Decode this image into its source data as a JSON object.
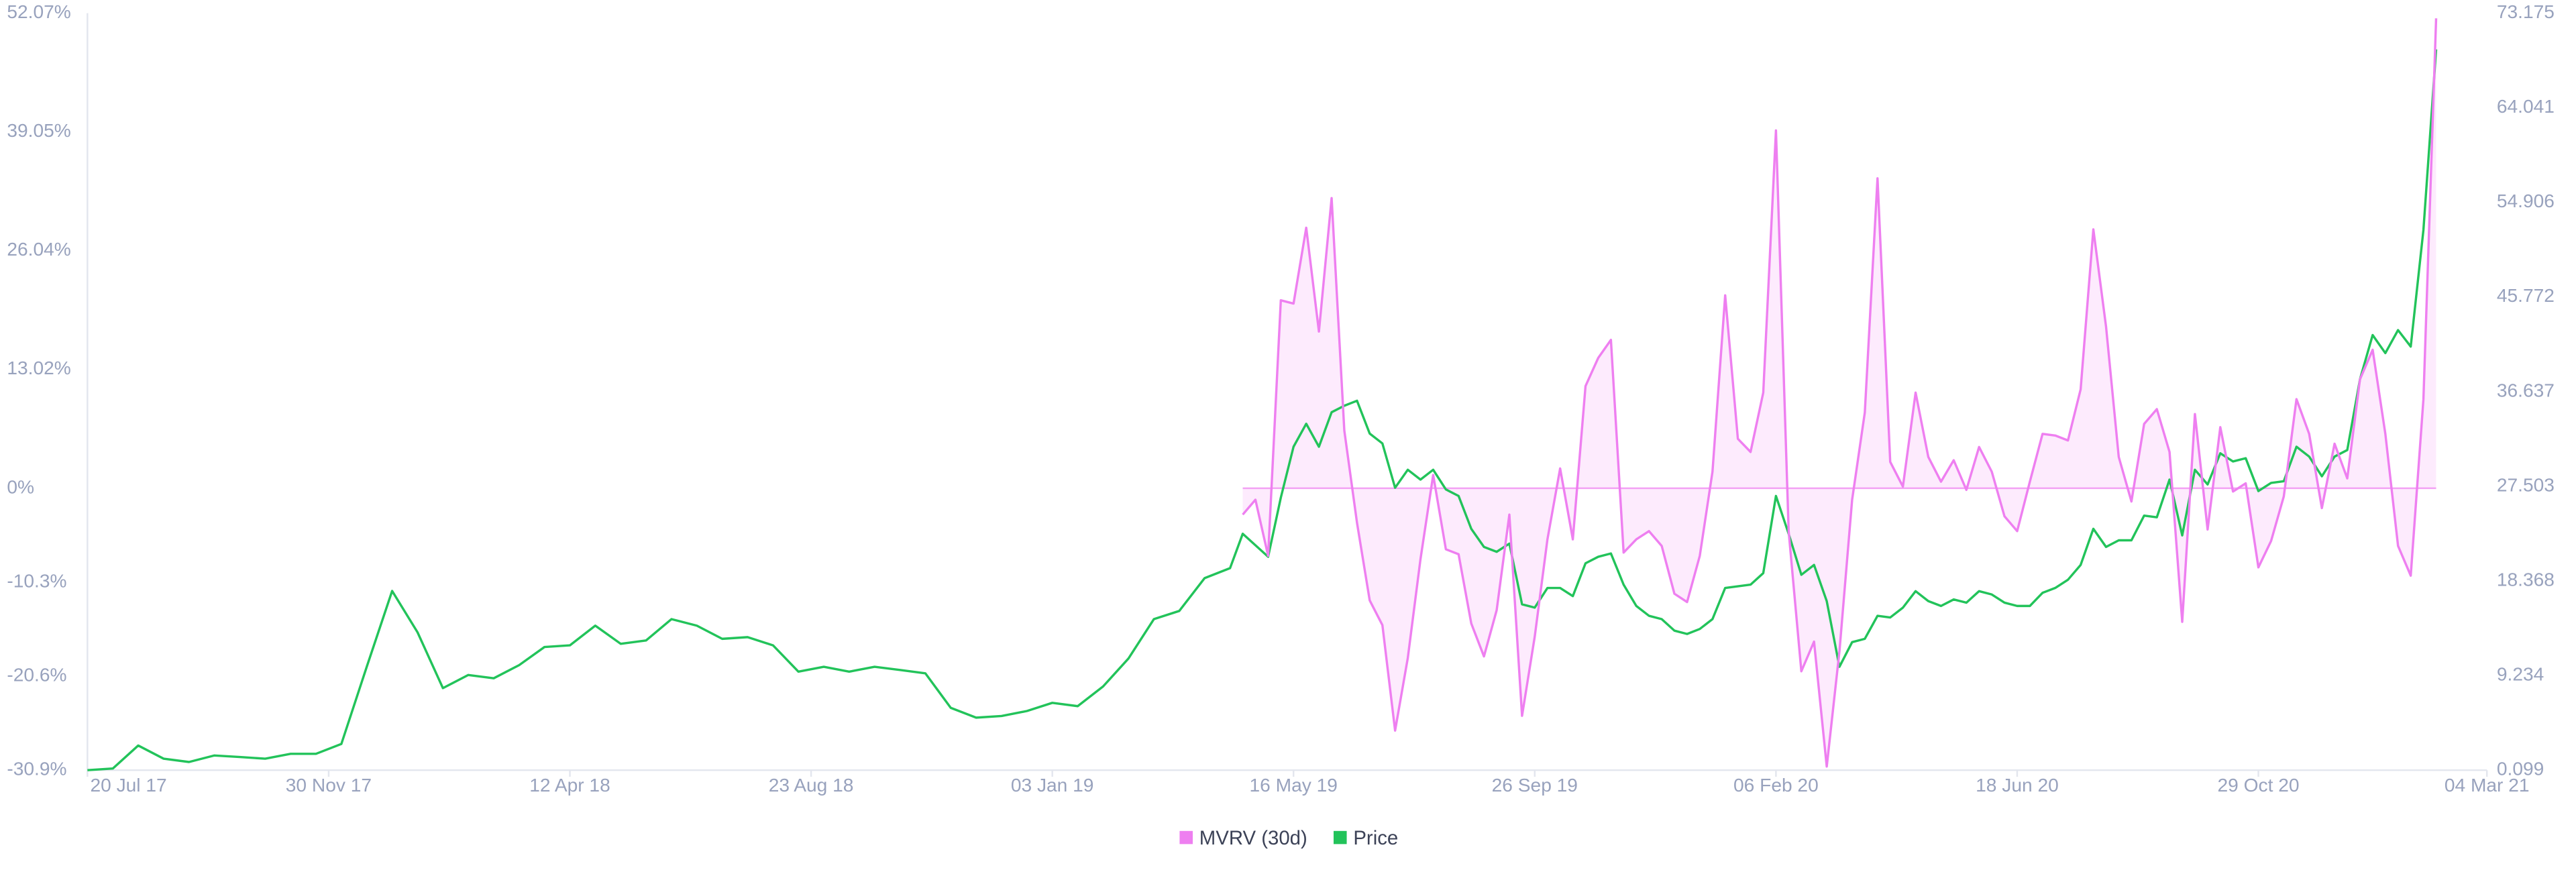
{
  "chart_data": {
    "type": "line",
    "x": [
      "2017-07-20",
      "2017-08-03",
      "2017-08-17",
      "2017-08-31",
      "2017-09-14",
      "2017-09-28",
      "2017-10-12",
      "2017-10-26",
      "2017-11-09",
      "2017-11-23",
      "2017-12-07",
      "2017-12-21",
      "2018-01-04",
      "2018-01-18",
      "2018-02-01",
      "2018-02-15",
      "2018-03-01",
      "2018-03-15",
      "2018-03-29",
      "2018-04-12",
      "2018-04-26",
      "2018-05-10",
      "2018-05-24",
      "2018-06-07",
      "2018-06-21",
      "2018-07-05",
      "2018-07-19",
      "2018-08-02",
      "2018-08-16",
      "2018-08-30",
      "2018-09-13",
      "2018-09-27",
      "2018-10-11",
      "2018-10-25",
      "2018-11-08",
      "2018-11-22",
      "2018-12-06",
      "2018-12-20",
      "2019-01-03",
      "2019-01-17",
      "2019-01-31",
      "2019-02-14",
      "2019-02-28",
      "2019-03-14",
      "2019-03-28",
      "2019-04-11",
      "2019-04-18",
      "2019-04-25",
      "2019-05-02",
      "2019-05-09",
      "2019-05-16",
      "2019-05-23",
      "2019-05-30",
      "2019-06-06",
      "2019-06-13",
      "2019-06-20",
      "2019-06-27",
      "2019-07-04",
      "2019-07-11",
      "2019-07-18",
      "2019-07-25",
      "2019-08-01",
      "2019-08-08",
      "2019-08-15",
      "2019-08-22",
      "2019-08-29",
      "2019-09-05",
      "2019-09-12",
      "2019-09-19",
      "2019-09-26",
      "2019-10-03",
      "2019-10-10",
      "2019-10-17",
      "2019-10-24",
      "2019-10-31",
      "2019-11-07",
      "2019-11-14",
      "2019-11-21",
      "2019-11-28",
      "2019-12-05",
      "2019-12-12",
      "2019-12-19",
      "2019-12-26",
      "2020-01-02",
      "2020-01-09",
      "2020-01-16",
      "2020-01-23",
      "2020-01-30",
      "2020-02-06",
      "2020-02-13",
      "2020-02-20",
      "2020-02-27",
      "2020-03-05",
      "2020-03-12",
      "2020-03-19",
      "2020-03-26",
      "2020-04-02",
      "2020-04-09",
      "2020-04-16",
      "2020-04-23",
      "2020-04-30",
      "2020-05-07",
      "2020-05-14",
      "2020-05-21",
      "2020-05-28",
      "2020-06-04",
      "2020-06-11",
      "2020-06-18",
      "2020-06-25",
      "2020-07-02",
      "2020-07-09",
      "2020-07-16",
      "2020-07-23",
      "2020-07-30",
      "2020-08-06",
      "2020-08-13",
      "2020-08-20",
      "2020-08-27",
      "2020-09-03",
      "2020-09-10",
      "2020-09-17",
      "2020-09-24",
      "2020-10-01",
      "2020-10-08",
      "2020-10-15",
      "2020-10-22",
      "2020-10-29",
      "2020-11-05",
      "2020-11-12",
      "2020-11-19",
      "2020-11-26",
      "2020-12-03",
      "2020-12-10",
      "2020-12-17",
      "2020-12-24",
      "2020-12-31",
      "2021-01-07",
      "2021-01-14",
      "2021-01-21",
      "2021-01-28",
      "2021-02-04"
    ],
    "series": [
      {
        "name": "MVRV (30d)",
        "color": "#ee7ff0",
        "fill": "#fde6fd",
        "axis": "y",
        "values": [
          null,
          null,
          null,
          null,
          null,
          null,
          null,
          null,
          null,
          null,
          null,
          null,
          null,
          null,
          null,
          null,
          null,
          null,
          null,
          null,
          null,
          null,
          null,
          null,
          null,
          null,
          null,
          null,
          null,
          null,
          null,
          null,
          null,
          null,
          null,
          null,
          null,
          null,
          null,
          null,
          null,
          null,
          null,
          null,
          null,
          null,
          -2.89,
          -1.26,
          -7.41,
          20.6,
          20.24,
          28.55,
          17.17,
          31.8,
          6.32,
          -3.79,
          -12.29,
          -15.0,
          -26.56,
          -18.61,
          -7.77,
          1.45,
          -6.69,
          -7.23,
          -14.82,
          -18.43,
          -13.37,
          -2.89,
          -24.94,
          -16.26,
          -5.6,
          2.17,
          -5.6,
          11.2,
          14.28,
          16.26,
          -7.05,
          -5.6,
          -4.7,
          -6.32,
          -11.56,
          -12.47,
          -7.41,
          1.81,
          21.14,
          5.42,
          3.98,
          10.48,
          39.21,
          -4.7,
          -20.06,
          -16.81,
          -30.5,
          -17.89,
          -1.26,
          8.31,
          33.97,
          2.89,
          0.18,
          10.48,
          3.43,
          0.72,
          3.07,
          -0.18,
          4.52,
          1.81,
          -3.07,
          -4.7,
          0.72,
          5.96,
          5.78,
          5.24,
          10.84,
          28.37,
          17.71,
          3.43,
          -1.45,
          7.05,
          8.67,
          3.98,
          -14.64,
          8.13,
          -4.52,
          6.69,
          -0.36,
          0.54,
          -8.67,
          -5.78,
          -0.9,
          9.76,
          5.96,
          -2.17,
          4.88,
          1.08,
          11.93,
          15.18,
          5.96,
          -6.32,
          -9.58,
          9.76,
          51.5
        ]
      },
      {
        "name": "Price",
        "color": "#22c35a",
        "axis": "y2",
        "values": [
          0.1,
          0.26,
          2.48,
          1.21,
          0.89,
          1.52,
          1.37,
          1.21,
          1.68,
          1.68,
          2.63,
          10.08,
          17.4,
          13.41,
          8.02,
          9.29,
          8.97,
          10.24,
          11.99,
          12.15,
          14.05,
          12.3,
          12.62,
          14.68,
          14.05,
          12.78,
          12.94,
          12.15,
          9.61,
          10.08,
          9.61,
          10.08,
          9.77,
          9.45,
          6.12,
          5.17,
          5.33,
          5.81,
          6.6,
          6.28,
          8.18,
          10.88,
          14.68,
          15.47,
          18.64,
          19.6,
          22.92,
          21.81,
          20.7,
          26.41,
          31.32,
          33.54,
          31.32,
          34.65,
          35.28,
          35.76,
          32.59,
          31.64,
          27.36,
          29.1,
          28.15,
          29.1,
          27.2,
          26.57,
          23.4,
          21.65,
          21.18,
          21.97,
          16.11,
          15.79,
          17.69,
          17.69,
          16.9,
          20.07,
          20.7,
          21.02,
          18.01,
          15.95,
          15.0,
          14.68,
          13.57,
          13.25,
          13.73,
          14.68,
          17.69,
          17.85,
          18.01,
          19.12,
          26.57,
          22.92,
          18.96,
          19.91,
          16.42,
          10.08,
          12.46,
          12.78,
          15.0,
          14.84,
          15.79,
          17.38,
          16.42,
          15.95,
          16.58,
          16.27,
          17.38,
          17.06,
          16.27,
          15.95,
          15.95,
          17.22,
          17.69,
          18.48,
          19.91,
          23.4,
          21.65,
          22.29,
          22.29,
          24.67,
          24.51,
          28.15,
          22.76,
          29.1,
          27.68,
          30.69,
          29.9,
          30.21,
          27.04,
          27.83,
          27.99,
          31.32,
          30.37,
          28.47,
          30.37,
          31.0,
          37.82,
          42.1,
          40.36,
          42.58,
          40.99,
          52.25,
          69.68
        ]
      }
    ],
    "xlim": [
      "2017-07-20",
      "2021-03-04"
    ],
    "xticks": [
      {
        "value": "2017-07-20",
        "label": "20 Jul 17"
      },
      {
        "value": "2017-11-30",
        "label": "30 Nov 17"
      },
      {
        "value": "2018-04-12",
        "label": "12 Apr 18"
      },
      {
        "value": "2018-08-23",
        "label": "23 Aug 18"
      },
      {
        "value": "2019-01-03",
        "label": "03 Jan 19"
      },
      {
        "value": "2019-05-16",
        "label": "16 May 19"
      },
      {
        "value": "2019-09-26",
        "label": "26 Sep 19"
      },
      {
        "value": "2020-02-06",
        "label": "06 Feb 20"
      },
      {
        "value": "2020-06-18",
        "label": "18 Jun 20"
      },
      {
        "value": "2020-10-29",
        "label": "29 Oct 20"
      },
      {
        "value": "2021-03-04",
        "label": "04 Mar 21"
      }
    ],
    "ylim": [
      -30.9,
      52.07
    ],
    "yticks": [
      {
        "value": -30.9,
        "label": "-30.9%"
      },
      {
        "value": -20.6,
        "label": "-20.6%"
      },
      {
        "value": -10.3,
        "label": "-10.3%"
      },
      {
        "value": 0,
        "label": "0%"
      },
      {
        "value": 13.02,
        "label": "13.02%"
      },
      {
        "value": 26.04,
        "label": "26.04%"
      },
      {
        "value": 39.05,
        "label": "39.05%"
      },
      {
        "value": 52.07,
        "label": "52.07%"
      }
    ],
    "y2lim": [
      0.099,
      73.175
    ],
    "y2ticks": [
      0.099,
      9.234,
      18.368,
      27.503,
      36.637,
      45.772,
      54.906,
      64.041,
      73.175
    ],
    "grid": false,
    "legend": "bottom"
  }
}
